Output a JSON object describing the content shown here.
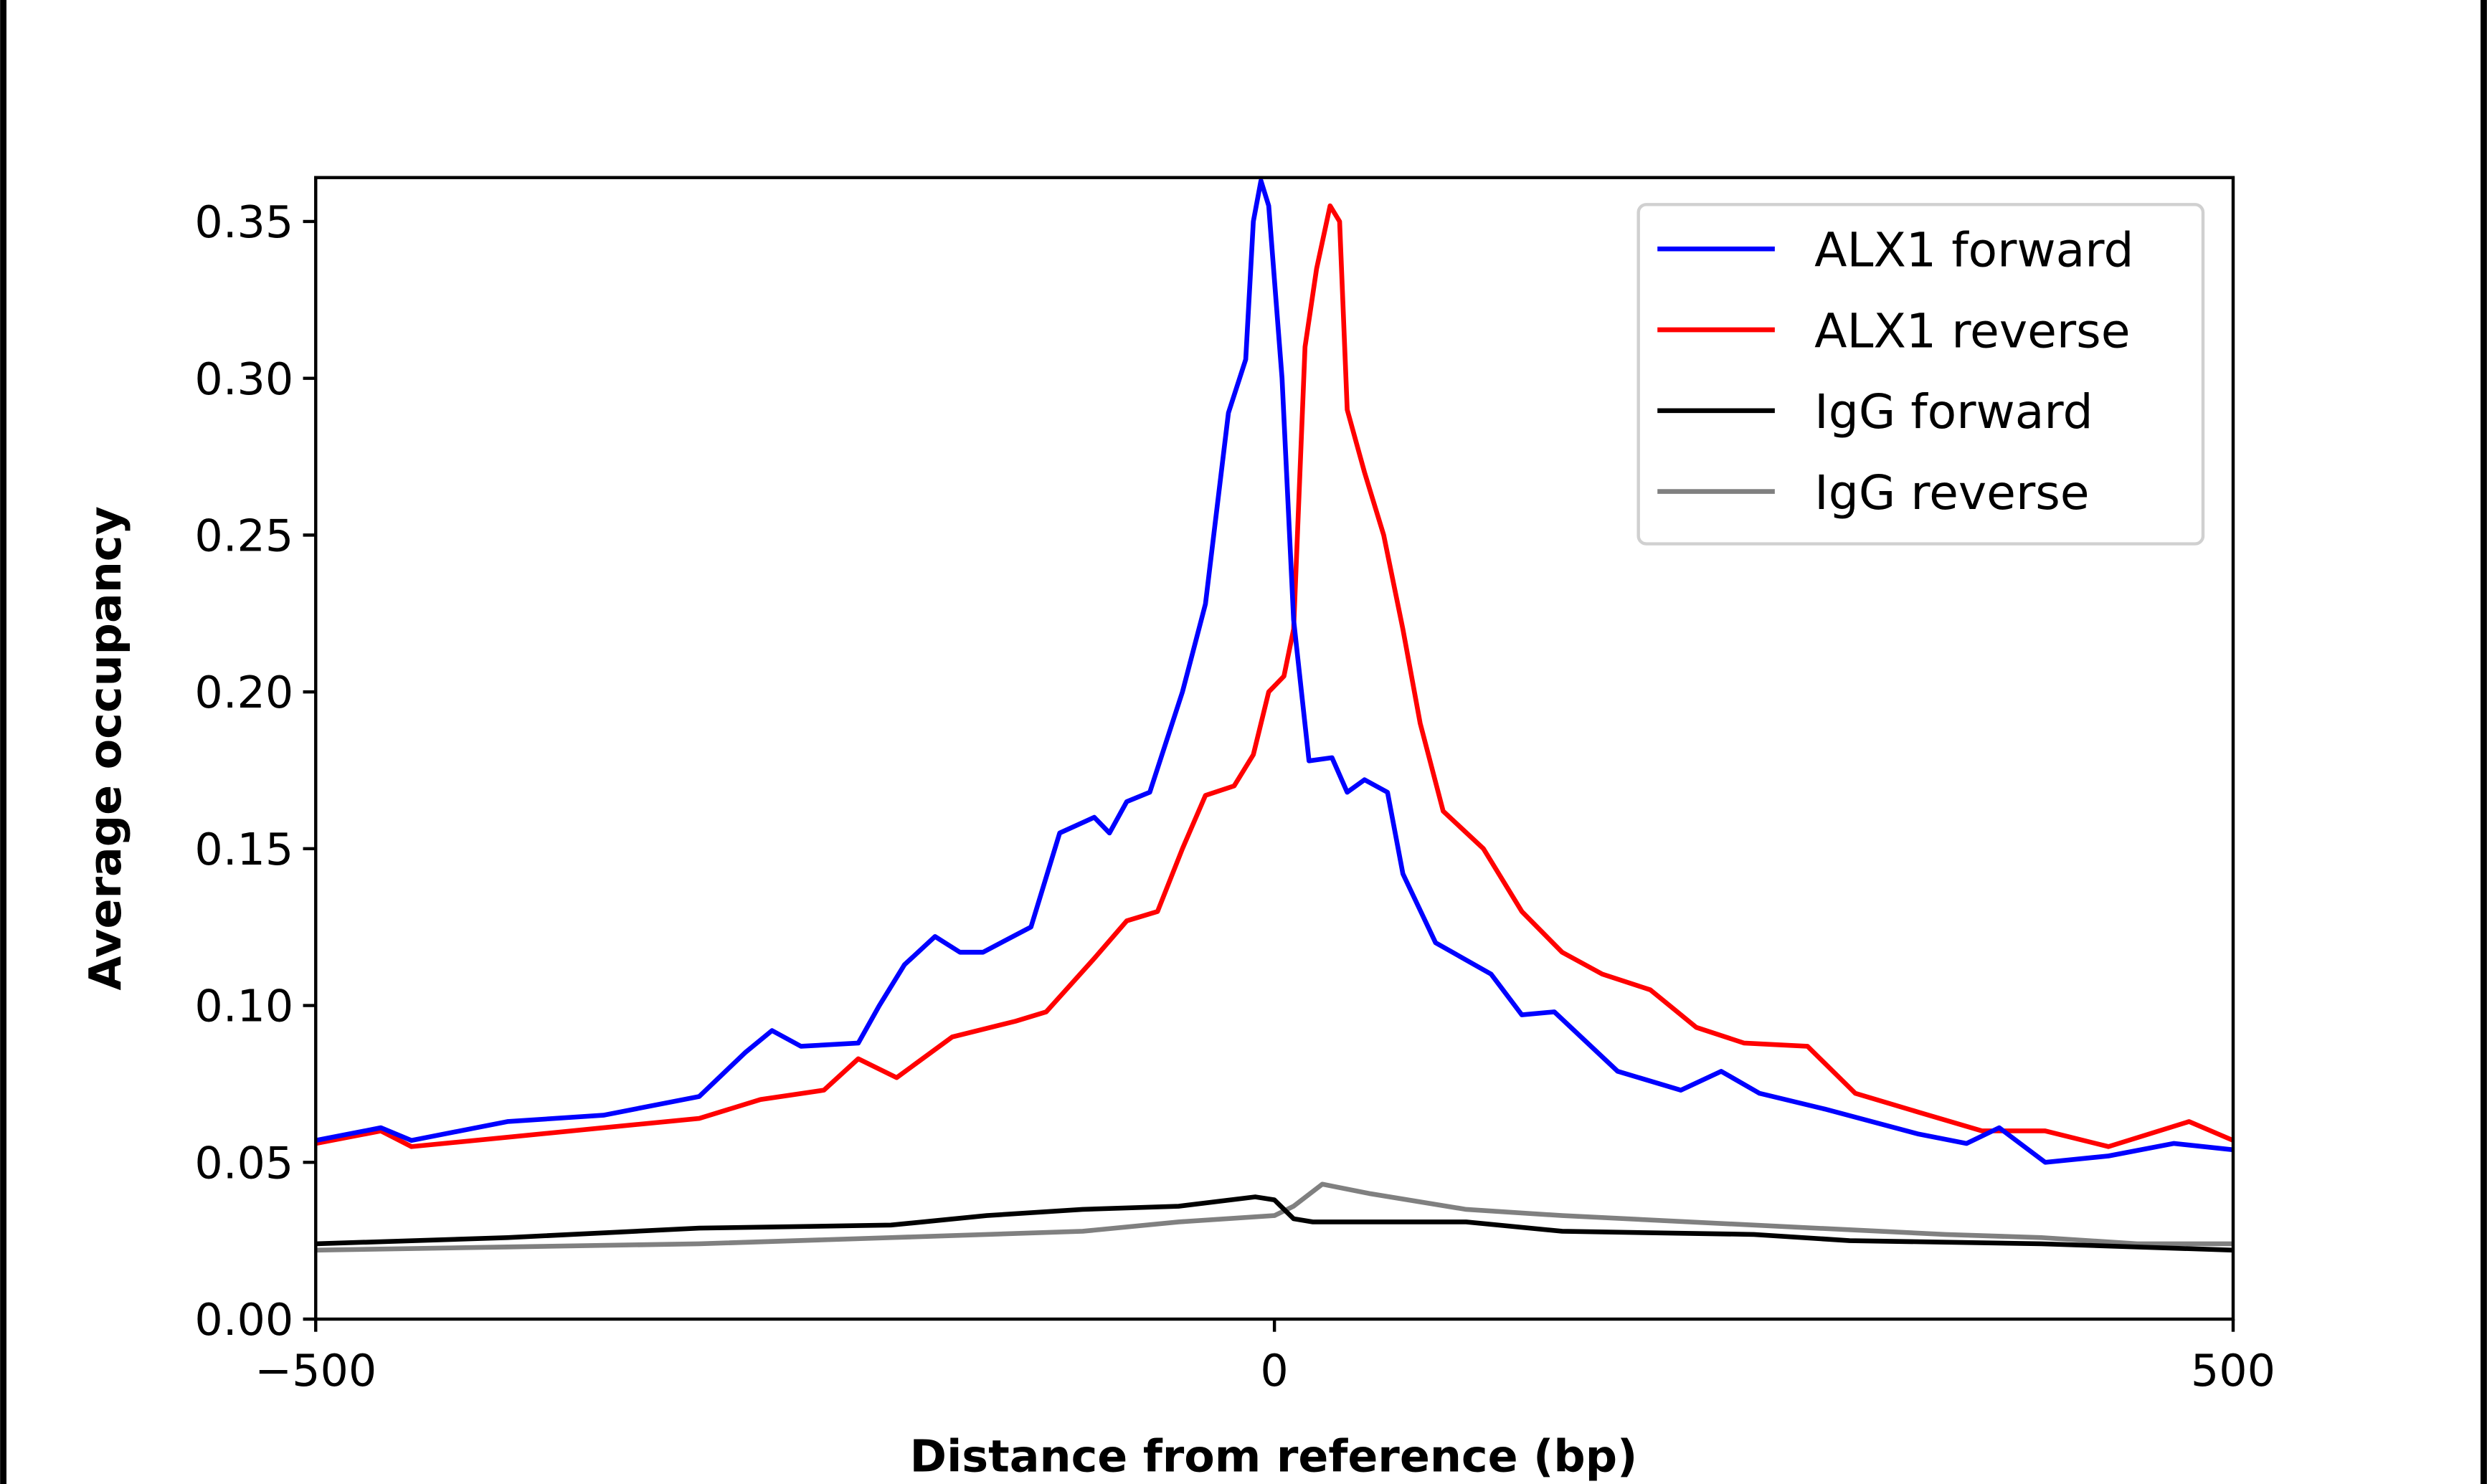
{
  "chart_data": {
    "type": "line",
    "title": "",
    "xlabel": "Distance from reference (bp)",
    "ylabel": "Average occupancy",
    "xlim": [
      -500,
      500
    ],
    "ylim": [
      0,
      0.364
    ],
    "xticks": [
      -500,
      0,
      500
    ],
    "xtick_labels": [
      "−500",
      "0",
      "500"
    ],
    "yticks": [
      0,
      0.05,
      0.1,
      0.15,
      0.2,
      0.25,
      0.3,
      0.35
    ],
    "ytick_labels": [
      "0.00",
      "0.05",
      "0.10",
      "0.15",
      "0.20",
      "0.25",
      "0.30",
      "0.35"
    ],
    "grid": false,
    "legend_position": "top-right",
    "series": [
      {
        "name": "ALX1 forward",
        "color": "#0000ff",
        "x": [
          -500,
          -466,
          -450,
          -400,
          -350,
          -300,
          -276,
          -262,
          -247,
          -217,
          -206,
          -193,
          -177,
          -164,
          -152,
          -127,
          -112,
          -94,
          -86,
          -77,
          -65,
          -48,
          -36,
          -24,
          -15,
          -11,
          -7,
          -3,
          4,
          10,
          18,
          30,
          38,
          47,
          59,
          67,
          84,
          113,
          129,
          146,
          179,
          212,
          233,
          253,
          287,
          336,
          361,
          378,
          402,
          435,
          469,
          500
        ],
        "y": [
          0.057,
          0.061,
          0.057,
          0.063,
          0.065,
          0.071,
          0.085,
          0.092,
          0.087,
          0.088,
          0.1,
          0.113,
          0.122,
          0.117,
          0.117,
          0.125,
          0.155,
          0.16,
          0.155,
          0.165,
          0.168,
          0.2,
          0.228,
          0.289,
          0.306,
          0.35,
          0.363,
          0.355,
          0.3,
          0.223,
          0.178,
          0.179,
          0.168,
          0.172,
          0.168,
          0.142,
          0.12,
          0.11,
          0.097,
          0.098,
          0.079,
          0.073,
          0.079,
          0.072,
          0.067,
          0.059,
          0.056,
          0.061,
          0.05,
          0.052,
          0.056,
          0.054
        ]
      },
      {
        "name": "ALX1 reverse",
        "color": "#ff0000",
        "x": [
          -500,
          -466,
          -450,
          -400,
          -350,
          -300,
          -268,
          -235,
          -217,
          -197,
          -168,
          -135,
          -119,
          -94,
          -77,
          -61,
          -48,
          -36,
          -21,
          -11,
          -3,
          5,
          10,
          16,
          22,
          29,
          34,
          38,
          47,
          57,
          67,
          76,
          88,
          109,
          129,
          150,
          171,
          196,
          220,
          245,
          278,
          303,
          336,
          369,
          402,
          435,
          477,
          500
        ],
        "y": [
          0.056,
          0.06,
          0.055,
          0.058,
          0.061,
          0.064,
          0.07,
          0.073,
          0.083,
          0.077,
          0.09,
          0.095,
          0.098,
          0.115,
          0.127,
          0.13,
          0.15,
          0.167,
          0.17,
          0.18,
          0.2,
          0.205,
          0.22,
          0.31,
          0.335,
          0.355,
          0.35,
          0.29,
          0.27,
          0.25,
          0.22,
          0.19,
          0.162,
          0.15,
          0.13,
          0.117,
          0.11,
          0.105,
          0.093,
          0.088,
          0.087,
          0.072,
          0.066,
          0.06,
          0.06,
          0.055,
          0.063,
          0.057
        ]
      },
      {
        "name": "IgG forward",
        "color": "#000000",
        "x": [
          -500,
          -400,
          -300,
          -200,
          -150,
          -100,
          -50,
          -10,
          0,
          10,
          20,
          100,
          150,
          250,
          300,
          400,
          500
        ],
        "y": [
          0.024,
          0.026,
          0.029,
          0.03,
          0.033,
          0.035,
          0.036,
          0.039,
          0.038,
          0.032,
          0.031,
          0.031,
          0.028,
          0.027,
          0.025,
          0.024,
          0.022
        ]
      },
      {
        "name": "IgG reverse",
        "color": "#808080",
        "x": [
          -500,
          -400,
          -300,
          -200,
          -100,
          -50,
          0,
          10,
          25,
          50,
          100,
          150,
          250,
          350,
          400,
          450,
          500
        ],
        "y": [
          0.022,
          0.023,
          0.024,
          0.026,
          0.028,
          0.031,
          0.033,
          0.036,
          0.043,
          0.04,
          0.035,
          0.033,
          0.03,
          0.027,
          0.026,
          0.024,
          0.024
        ]
      }
    ]
  }
}
